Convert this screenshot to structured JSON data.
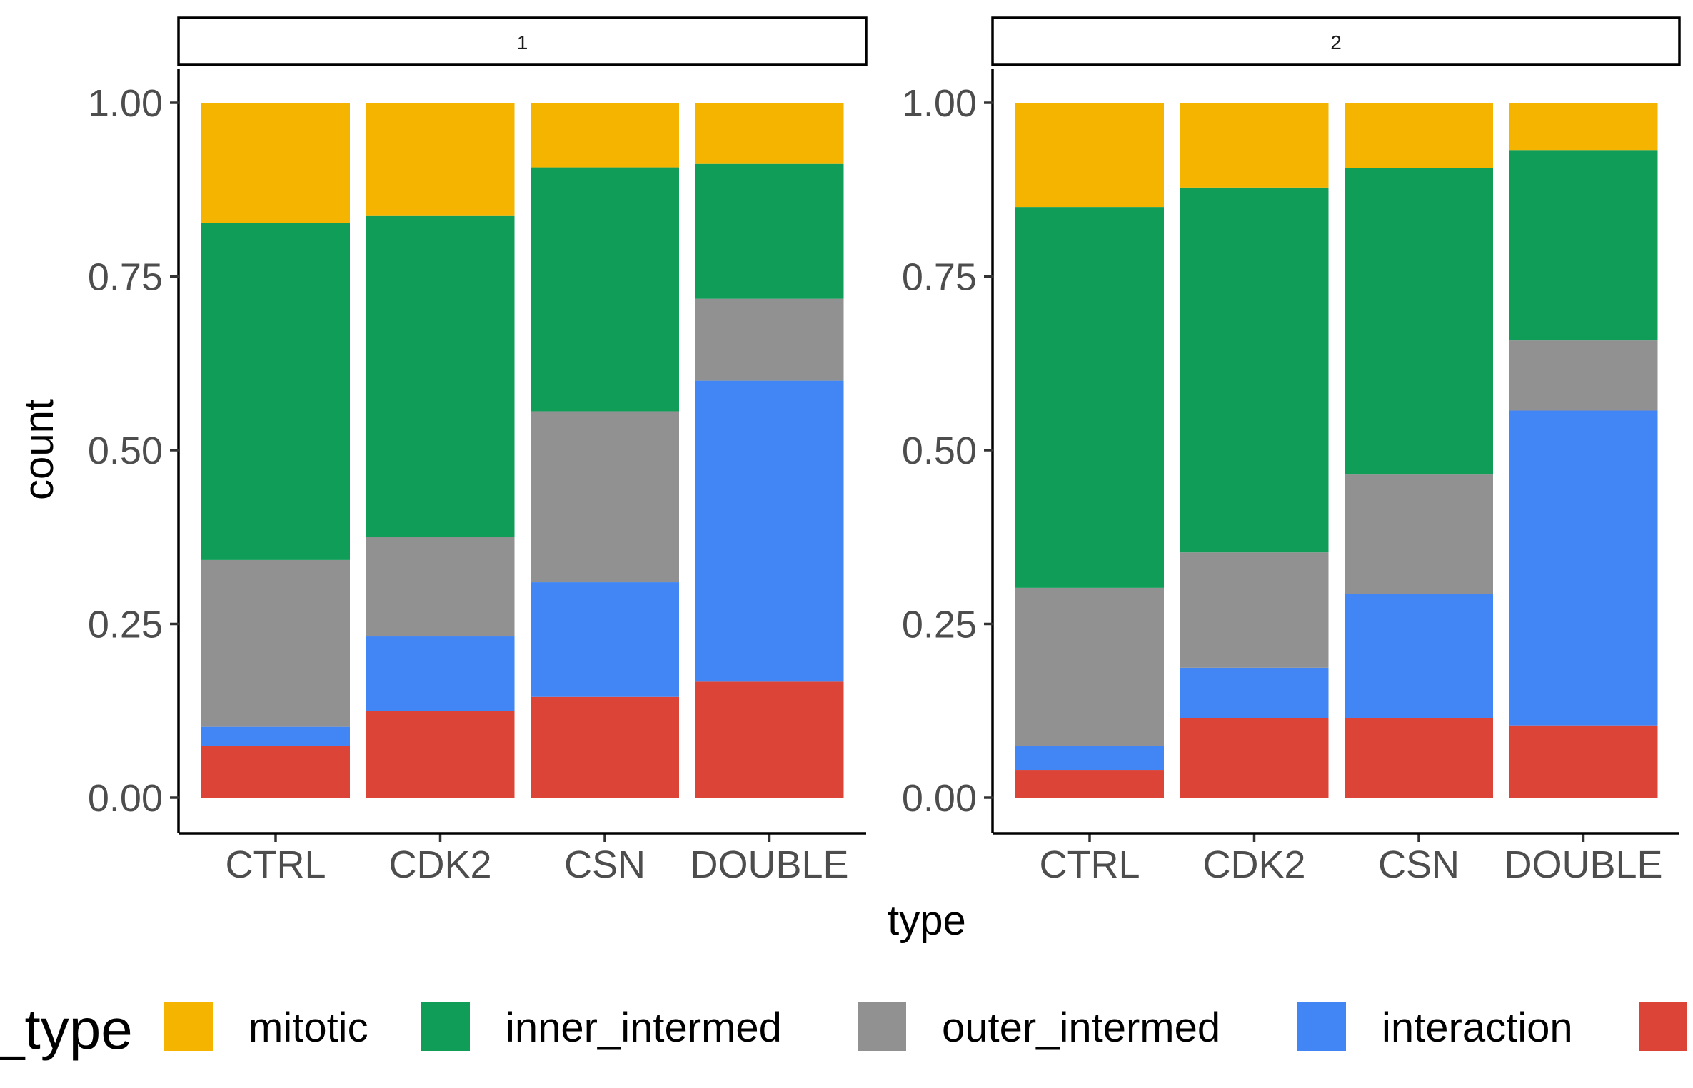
{
  "chart_data": {
    "type": "bar",
    "stacked": true,
    "facets": [
      "1",
      "2"
    ],
    "categories": [
      "CTRL",
      "CDK2",
      "CSN",
      "DOUBLE"
    ],
    "xlabel": "type",
    "ylabel": "count",
    "ylim": [
      0,
      1
    ],
    "y_ticks": [
      "0.00",
      "0.25",
      "0.50",
      "0.75",
      "1.00"
    ],
    "grid": false,
    "legend_title": "_type",
    "legend_position": "bottom",
    "series": [
      {
        "name": "mitotic",
        "color": "#F4B400",
        "facet_values": {
          "1": [
            0.173,
            0.163,
            0.093,
            0.088
          ],
          "2": [
            0.15,
            0.122,
            0.094,
            0.068
          ]
        }
      },
      {
        "name": "inner_intermed",
        "color": "#0F9D58",
        "facet_values": {
          "1": [
            0.485,
            0.462,
            0.351,
            0.194
          ],
          "2": [
            0.548,
            0.525,
            0.441,
            0.274
          ]
        }
      },
      {
        "name": "outer_intermed",
        "color": "#919191",
        "facet_values": {
          "1": [
            0.24,
            0.143,
            0.246,
            0.118
          ],
          "2": [
            0.228,
            0.166,
            0.172,
            0.101
          ]
        }
      },
      {
        "name": "interaction",
        "color": "#4285F4",
        "facet_values": {
          "1": [
            0.028,
            0.107,
            0.165,
            0.433
          ],
          "2": [
            0.034,
            0.073,
            0.178,
            0.453
          ]
        }
      },
      {
        "name": "",
        "color": "#DB4437",
        "facet_values": {
          "1": [
            0.074,
            0.125,
            0.145,
            0.167
          ],
          "2": [
            0.04,
            0.114,
            0.115,
            0.104
          ]
        }
      }
    ]
  }
}
